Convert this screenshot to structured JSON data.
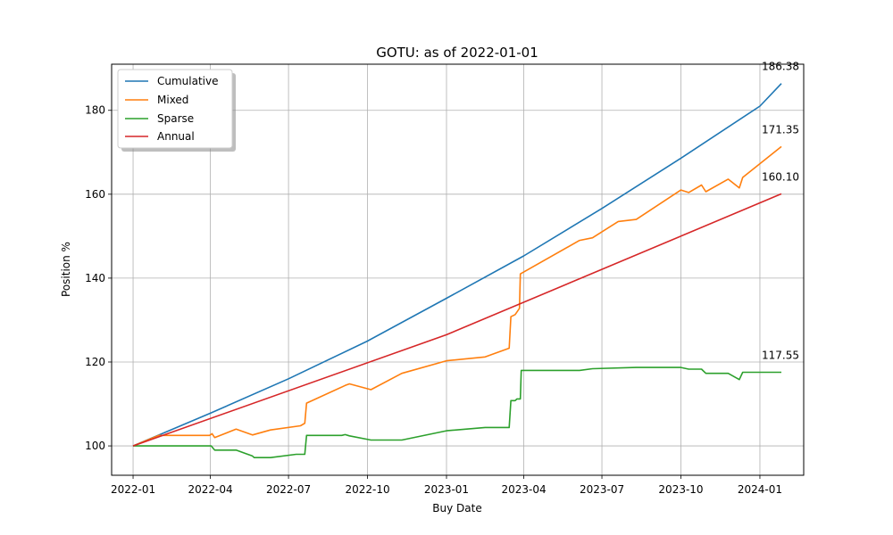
{
  "chart_data": {
    "type": "line",
    "title": "GOTU: as of 2022-01-01",
    "xlabel": "Buy Date",
    "ylabel": "Position %",
    "xlim": [
      "2021-12-07",
      "2024-02-21"
    ],
    "ylim": [
      93,
      191
    ],
    "grid": true,
    "legend_position": "top-left",
    "x_ticks": [
      "2022-01-01",
      "2022-04-01",
      "2022-07-01",
      "2022-10-01",
      "2023-01-01",
      "2023-04-01",
      "2023-07-01",
      "2023-10-01",
      "2024-01-01"
    ],
    "x_tick_labels": [
      "2022-01",
      "2022-04",
      "2022-07",
      "2022-10",
      "2023-01",
      "2023-04",
      "2023-07",
      "2023-10",
      "2024-01"
    ],
    "y_ticks": [
      100,
      120,
      140,
      160,
      180
    ],
    "series": [
      {
        "name": "Cumulative",
        "color": "#1f77b4",
        "end_label": "186.38",
        "points": [
          [
            "2022-01-01",
            100
          ],
          [
            "2022-04-01",
            107.8
          ],
          [
            "2022-07-01",
            116.0
          ],
          [
            "2022-10-01",
            125.0
          ],
          [
            "2023-01-01",
            135.2
          ],
          [
            "2023-04-01",
            145.3
          ],
          [
            "2023-07-01",
            156.6
          ],
          [
            "2023-10-01",
            168.6
          ],
          [
            "2024-01-01",
            181.0
          ],
          [
            "2024-01-26",
            186.38
          ]
        ]
      },
      {
        "name": "Mixed",
        "color": "#ff7f0e",
        "end_label": "171.35",
        "points": [
          [
            "2022-01-01",
            100.0
          ],
          [
            "2022-01-31",
            102.5
          ],
          [
            "2022-03-31",
            102.5
          ],
          [
            "2022-04-03",
            102.9
          ],
          [
            "2022-04-06",
            102.0
          ],
          [
            "2022-05-01",
            104.0
          ],
          [
            "2022-05-20",
            102.6
          ],
          [
            "2022-06-10",
            103.8
          ],
          [
            "2022-07-15",
            104.8
          ],
          [
            "2022-07-20",
            105.4
          ],
          [
            "2022-07-22",
            110.2
          ],
          [
            "2022-09-05",
            114.4
          ],
          [
            "2022-09-10",
            114.8
          ],
          [
            "2022-10-05",
            113.4
          ],
          [
            "2022-11-10",
            117.3
          ],
          [
            "2023-01-01",
            120.3
          ],
          [
            "2023-02-15",
            121.2
          ],
          [
            "2023-03-15",
            123.3
          ],
          [
            "2023-03-17",
            130.8
          ],
          [
            "2023-03-22",
            131.3
          ],
          [
            "2023-03-27",
            132.8
          ],
          [
            "2023-03-28",
            141.0
          ],
          [
            "2023-06-05",
            149.0
          ],
          [
            "2023-06-20",
            149.6
          ],
          [
            "2023-07-20",
            153.5
          ],
          [
            "2023-08-10",
            154.0
          ],
          [
            "2023-10-01",
            161.0
          ],
          [
            "2023-10-10",
            160.4
          ],
          [
            "2023-10-25",
            162.2
          ],
          [
            "2023-10-30",
            160.6
          ],
          [
            "2023-11-25",
            163.6
          ],
          [
            "2023-12-08",
            161.5
          ],
          [
            "2023-12-12",
            164.0
          ],
          [
            "2024-01-26",
            171.35
          ]
        ]
      },
      {
        "name": "Sparse",
        "color": "#2ca02c",
        "end_label": "117.55",
        "points": [
          [
            "2022-01-01",
            100.0
          ],
          [
            "2022-04-02",
            100.0
          ],
          [
            "2022-04-06",
            99.0
          ],
          [
            "2022-05-01",
            99.0
          ],
          [
            "2022-05-20",
            97.6
          ],
          [
            "2022-05-22",
            97.2
          ],
          [
            "2022-06-10",
            97.2
          ],
          [
            "2022-07-10",
            98.0
          ],
          [
            "2022-07-20",
            98.0
          ],
          [
            "2022-07-22",
            102.5
          ],
          [
            "2022-09-01",
            102.5
          ],
          [
            "2022-09-05",
            102.7
          ],
          [
            "2022-09-10",
            102.4
          ],
          [
            "2022-10-05",
            101.4
          ],
          [
            "2022-11-10",
            101.4
          ],
          [
            "2023-01-01",
            103.6
          ],
          [
            "2023-02-15",
            104.4
          ],
          [
            "2023-03-15",
            104.4
          ],
          [
            "2023-03-17",
            110.8
          ],
          [
            "2023-03-22",
            110.8
          ],
          [
            "2023-03-24",
            111.2
          ],
          [
            "2023-03-28",
            111.2
          ],
          [
            "2023-03-29",
            118.0
          ],
          [
            "2023-06-05",
            118.0
          ],
          [
            "2023-06-20",
            118.4
          ],
          [
            "2023-08-10",
            118.7
          ],
          [
            "2023-10-01",
            118.7
          ],
          [
            "2023-10-10",
            118.3
          ],
          [
            "2023-10-25",
            118.3
          ],
          [
            "2023-10-30",
            117.3
          ],
          [
            "2023-11-25",
            117.3
          ],
          [
            "2023-12-08",
            115.8
          ],
          [
            "2023-12-12",
            117.55
          ],
          [
            "2024-01-26",
            117.55
          ]
        ]
      },
      {
        "name": "Annual",
        "color": "#d62728",
        "end_label": "160.10",
        "points": [
          [
            "2022-01-01",
            100.0
          ],
          [
            "2023-01-01",
            126.5
          ],
          [
            "2024-01-26",
            160.1
          ]
        ]
      }
    ]
  }
}
